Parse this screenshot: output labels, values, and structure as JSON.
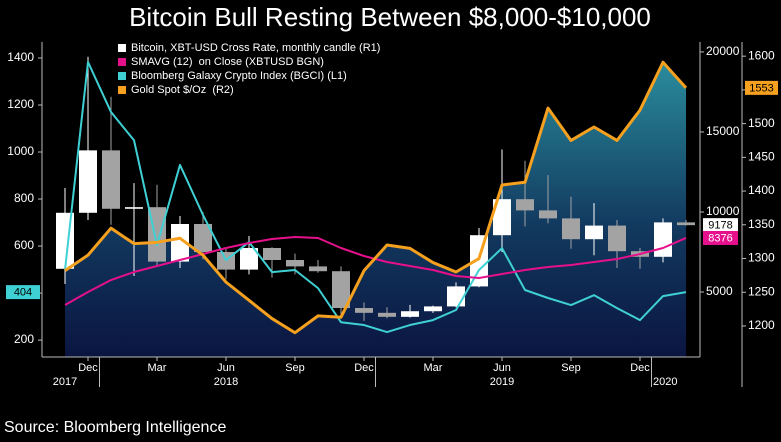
{
  "chart_data": {
    "type": "combo",
    "title": "Bitcoin Bull Resting Between $8,000-$10,000",
    "source": "Source: Bloomberg Intelligence",
    "categories": [
      null,
      "Dec",
      null,
      null,
      "Mar",
      null,
      null,
      "Jun",
      null,
      null,
      "Sep",
      null,
      null,
      "Dec",
      null,
      null,
      "Mar",
      null,
      null,
      "Jun",
      null,
      null,
      "Sep",
      null,
      null,
      "Dec",
      null,
      null
    ],
    "x_groups": [
      "2017",
      "2018",
      "2019",
      "2020"
    ],
    "ylim": [
      128,
      1468
    ],
    "yticks": [
      200,
      400,
      600,
      800,
      1000,
      1200,
      1400
    ],
    "y2lim": [
      940,
      20620
    ],
    "y2ticks": [
      5000,
      10000,
      15000,
      20000
    ],
    "y3lim": [
      1154,
      1621
    ],
    "y3ticks": [
      1200,
      1250,
      1300,
      1350,
      1400,
      1450,
      1500,
      1550,
      1600
    ],
    "grid": false,
    "legend": "top-left",
    "series": [
      {
        "name": "Bitcoin, XBT-USD Cross Rate, monthly candle (R1)",
        "type": "candlestick",
        "axis": "y2",
        "color": "#ffffff",
        "down_color": "#a3a3a3",
        "end_label": true,
        "open": [
          6450,
          9950,
          13850,
          10200,
          10300,
          6900,
          9250,
          7500,
          6400,
          7750,
          7000,
          6600,
          6300,
          4000,
          3700,
          3450,
          3800,
          4100,
          5350,
          8550,
          10800,
          10100,
          9600,
          8300,
          9150,
          7550,
          7200,
          9350
        ],
        "high": [
          11500,
          19700,
          17200,
          11800,
          11700,
          9750,
          10000,
          7750,
          8500,
          7800,
          7400,
          7000,
          6600,
          4350,
          4050,
          4200,
          4150,
          5600,
          9000,
          13900,
          13200,
          12300,
          10950,
          10550,
          9500,
          7750,
          9600,
          9500
        ],
        "low": [
          5500,
          9500,
          9200,
          6000,
          6600,
          6500,
          7050,
          5800,
          6100,
          5900,
          6100,
          6200,
          3500,
          3200,
          3350,
          3400,
          3700,
          4050,
          5300,
          7500,
          9100,
          9300,
          7700,
          7300,
          6500,
          6450,
          6850,
          9150
        ],
        "close": [
          9950,
          13850,
          10200,
          10300,
          6900,
          9250,
          7500,
          6400,
          7750,
          7000,
          6600,
          6300,
          4000,
          3700,
          3450,
          3800,
          4100,
          5350,
          8550,
          10800,
          10100,
          9600,
          8300,
          9150,
          7550,
          7200,
          9350,
          9178
        ]
      },
      {
        "name": "SMAVG (12)  on Close (XBTUSD BGN)",
        "type": "line",
        "axis": "y2",
        "color": "#e6108c",
        "end_label": true,
        "values": [
          4190,
          5000,
          5750,
          6250,
          6625,
          7000,
          7375,
          7750,
          8060,
          8310,
          8440,
          8375,
          7750,
          7250,
          6875,
          6625,
          6375,
          6000,
          5875,
          6125,
          6375,
          6560,
          6690,
          6875,
          7060,
          7375,
          7750,
          8376
        ]
      },
      {
        "name": "Bloomberg Galaxy Crypto Index (BGCI) (L1)",
        "type": "line",
        "axis": "y",
        "color": "#3fd0d4",
        "end_label": true,
        "values": [
          498,
          1383,
          1170,
          1050,
          604,
          945,
          732,
          540,
          617,
          489,
          498,
          421,
          276,
          264,
          234,
          264,
          285,
          328,
          498,
          591,
          413,
          379,
          349,
          391,
          336,
          285,
          387,
          404
        ]
      },
      {
        "name": "Gold Spot $/Oz  (R2)",
        "type": "area",
        "axis": "y3",
        "color": "#f5a01e",
        "end_label": true,
        "values": [
          1282,
          1305,
          1345,
          1322,
          1324,
          1330,
          1305,
          1265,
          1238,
          1211,
          1190,
          1215,
          1213,
          1282,
          1320,
          1315,
          1294,
          1280,
          1300,
          1409,
          1413,
          1523,
          1475,
          1495,
          1475,
          1520,
          1591,
          1553
        ]
      }
    ]
  }
}
